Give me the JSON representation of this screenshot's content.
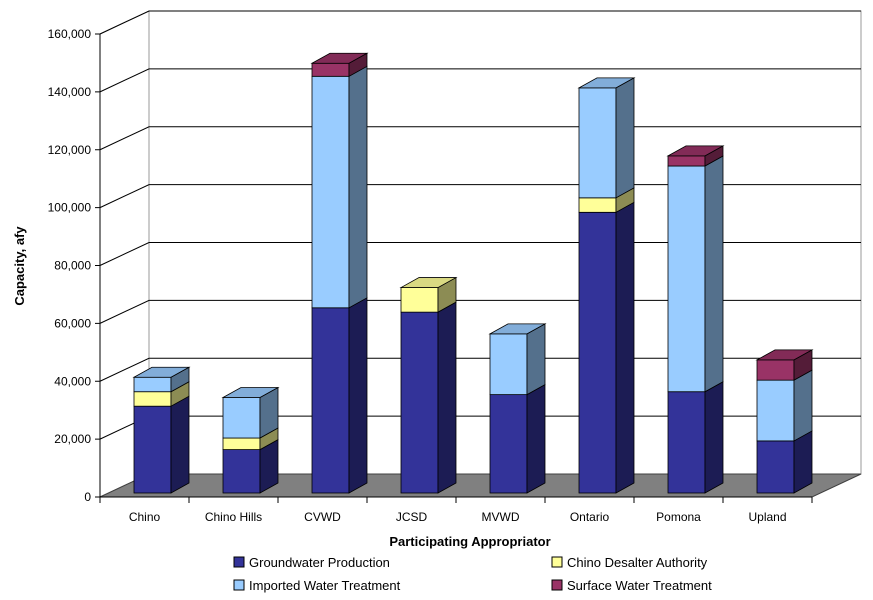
{
  "chart_data": {
    "type": "bar",
    "stacked": true,
    "three_d": true,
    "title": "",
    "xlabel": "Participating Appropriator",
    "ylabel": "Capacity, afy",
    "ylim": [
      0,
      160000
    ],
    "yticks": [
      0,
      20000,
      40000,
      60000,
      80000,
      100000,
      120000,
      140000,
      160000
    ],
    "ytick_labels": [
      "0",
      "20,000",
      "40,000",
      "60,000",
      "80,000",
      "100,000",
      "120,000",
      "140,000",
      "160,000"
    ],
    "grid": true,
    "legend_position": "bottom",
    "categories": [
      "Chino",
      "Chino Hills",
      "CVWD",
      "JCSD",
      "MVWD",
      "Ontario",
      "Pomona",
      "Upland"
    ],
    "series": [
      {
        "name": "Groundwater Production",
        "color": "#333399",
        "values": [
          30000,
          15000,
          64000,
          62500,
          34000,
          97000,
          35000,
          18000
        ]
      },
      {
        "name": "Chino Desalter Authority",
        "color": "#FFFF99",
        "values": [
          5000,
          4000,
          0,
          8500,
          0,
          5000,
          0,
          0
        ]
      },
      {
        "name": "Imported Water Treatment",
        "color": "#99CCFF",
        "values": [
          5000,
          14000,
          80000,
          0,
          21000,
          38000,
          78000,
          21000
        ]
      },
      {
        "name": "Surface Water Treatment",
        "color": "#993366",
        "values": [
          0,
          0,
          4500,
          0,
          0,
          0,
          3500,
          7000
        ]
      }
    ]
  }
}
